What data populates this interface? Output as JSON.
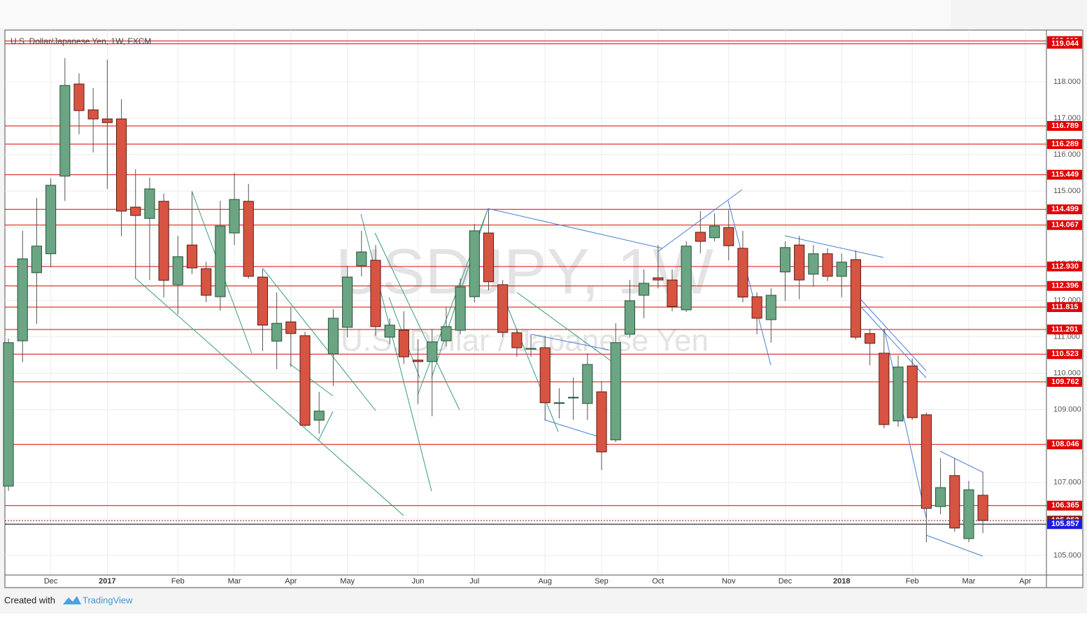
{
  "chart_data": {
    "type": "candlestick",
    "title": "U.S. Dollar/Japanese Yen, 1W, FXCM",
    "watermark": "USDJPY, 1W",
    "watermark_subtitle": "U.S. Dollar / Japanese Yen",
    "x": [
      0,
      1,
      2,
      3,
      4,
      5,
      6,
      7,
      8,
      9,
      10,
      11,
      12,
      13,
      14,
      15,
      16,
      17,
      18,
      19,
      20,
      21,
      22,
      23,
      24,
      25,
      26,
      27,
      28,
      29,
      30,
      31,
      32,
      33,
      34,
      35,
      36,
      37,
      38,
      39,
      40,
      41,
      42,
      43,
      44,
      45,
      46,
      47,
      48,
      49,
      50,
      51,
      52,
      53,
      54,
      55,
      56,
      57,
      58,
      59,
      60,
      61,
      62,
      63,
      64,
      65,
      66,
      67,
      68,
      69
    ],
    "open": [
      106.9,
      110.89,
      112.76,
      113.28,
      115.41,
      117.94,
      117.23,
      116.98,
      116.98,
      114.56,
      114.25,
      114.72,
      112.43,
      113.52,
      112.87,
      112.1,
      113.85,
      114.72,
      112.64,
      110.88,
      111.41,
      111.03,
      108.71,
      110.53,
      111.26,
      112.95,
      113.1,
      110.99,
      111.18,
      110.36,
      110.32,
      110.89,
      111.18,
      112.1,
      113.85,
      112.43,
      111.11,
      110.66,
      110.7,
      109.17,
      109.32,
      109.17,
      109.49,
      108.17,
      111.07,
      112.14,
      112.62,
      112.56,
      111.74,
      113.87,
      113.72,
      114.0,
      113.43,
      112.1,
      111.47,
      112.78,
      113.52,
      112.72,
      113.28,
      112.66,
      113.12,
      111.09,
      110.55,
      108.69,
      110.2,
      108.86,
      106.34,
      107.19,
      105.46,
      106.65
    ],
    "high": [
      110.95,
      113.91,
      114.81,
      115.35,
      118.65,
      118.23,
      117.83,
      118.61,
      117.52,
      115.6,
      115.37,
      114.93,
      113.77,
      115.0,
      113.06,
      114.73,
      115.5,
      115.2,
      112.85,
      112.22,
      111.8,
      111.14,
      109.49,
      111.76,
      112.95,
      113.91,
      113.52,
      111.51,
      111.7,
      110.93,
      111.22,
      111.8,
      112.6,
      114.1,
      114.48,
      112.56,
      111.22,
      111.07,
      111.03,
      109.59,
      109.88,
      110.55,
      109.78,
      111.37,
      112.56,
      112.85,
      113.52,
      112.85,
      113.62,
      114.45,
      114.39,
      114.48,
      113.91,
      112.22,
      112.33,
      113.62,
      113.77,
      113.52,
      113.43,
      113.28,
      113.37,
      111.22,
      111.22,
      110.49,
      110.41,
      108.92,
      107.67,
      107.67,
      107.04,
      107.29
    ],
    "low": [
      106.77,
      110.3,
      111.36,
      112.91,
      114.73,
      116.56,
      116.06,
      115.06,
      113.76,
      112.6,
      112.56,
      112.08,
      111.62,
      112.72,
      111.95,
      111.72,
      113.52,
      112.6,
      110.61,
      110.11,
      110.17,
      108.53,
      108.34,
      109.65,
      110.99,
      112.66,
      111.03,
      110.8,
      110.26,
      109.15,
      108.82,
      110.74,
      111.07,
      111.95,
      112.28,
      110.99,
      110.45,
      110.45,
      108.72,
      108.76,
      108.72,
      108.72,
      107.34,
      108.11,
      110.99,
      111.51,
      112.33,
      111.7,
      111.68,
      113.29,
      113.62,
      113.1,
      111.95,
      111.07,
      110.84,
      111.99,
      112.03,
      112.37,
      112.53,
      112.09,
      110.93,
      110.22,
      108.49,
      108.53,
      108.72,
      105.36,
      106.13,
      105.65,
      105.36,
      105.61
    ],
    "close": [
      110.84,
      113.14,
      113.49,
      115.16,
      117.9,
      117.21,
      116.98,
      116.88,
      114.45,
      114.33,
      115.06,
      112.55,
      113.2,
      112.89,
      112.14,
      114.04,
      114.77,
      112.66,
      111.32,
      111.37,
      111.09,
      108.57,
      108.96,
      111.51,
      112.64,
      113.33,
      111.28,
      111.32,
      110.45,
      110.32,
      110.86,
      111.28,
      112.37,
      113.91,
      112.51,
      111.12,
      110.7,
      110.68,
      109.19,
      109.19,
      109.34,
      110.24,
      107.84,
      110.84,
      111.99,
      112.47,
      112.56,
      111.83,
      113.49,
      113.62,
      114.04,
      113.5,
      112.09,
      111.51,
      112.14,
      113.45,
      112.56,
      113.28,
      112.66,
      113.05,
      110.99,
      110.82,
      108.59,
      110.17,
      108.78,
      106.29,
      106.86,
      105.75,
      106.8,
      105.96
    ],
    "up_color": "#6ba583",
    "down_color": "#d75442",
    "xlim": [
      -0.25,
      73.5
    ],
    "xticks": [
      {
        "value": 3,
        "label": "Dec"
      },
      {
        "value": 7,
        "label": "2017"
      },
      {
        "value": 12,
        "label": "Feb"
      },
      {
        "value": 16,
        "label": "Mar"
      },
      {
        "value": 20,
        "label": "Apr"
      },
      {
        "value": 24,
        "label": "May"
      },
      {
        "value": 29,
        "label": "Jun"
      },
      {
        "value": 33,
        "label": "Jul"
      },
      {
        "value": 38,
        "label": "Aug"
      },
      {
        "value": 42,
        "label": "Sep"
      },
      {
        "value": 46,
        "label": "Oct"
      },
      {
        "value": 51,
        "label": "Nov"
      },
      {
        "value": 55,
        "label": "Dec"
      },
      {
        "value": 59,
        "label": "2018"
      },
      {
        "value": 64,
        "label": "Feb"
      },
      {
        "value": 68,
        "label": "Mar"
      },
      {
        "value": 72,
        "label": "Apr"
      }
    ],
    "ylim": [
      104.46,
      119.42
    ],
    "yticks": [
      {
        "value": 105,
        "label": "105.000"
      },
      {
        "value": 106,
        "label": "106.000"
      },
      {
        "value": 107,
        "label": "107.000"
      },
      {
        "value": 108,
        "label": "108.000"
      },
      {
        "value": 109,
        "label": "109.000"
      },
      {
        "value": 110,
        "label": "110.000"
      },
      {
        "value": 111,
        "label": "111.000"
      },
      {
        "value": 112,
        "label": "112.000"
      },
      {
        "value": 113,
        "label": "113.000"
      },
      {
        "value": 114,
        "label": "114.000"
      },
      {
        "value": 115,
        "label": "115.000"
      },
      {
        "value": 116,
        "label": "116.000"
      },
      {
        "value": 117,
        "label": "117.000"
      },
      {
        "value": 118,
        "label": "118.000"
      }
    ],
    "grid": true,
    "levels": [
      {
        "value": 119.119,
        "label": "119.119",
        "color": "#e00000"
      },
      {
        "value": 119.044,
        "label": "119.044",
        "color": "#e00000"
      },
      {
        "value": 116.789,
        "label": "116.789",
        "color": "#e00000"
      },
      {
        "value": 116.289,
        "label": "116.289",
        "color": "#e00000"
      },
      {
        "value": 115.449,
        "label": "115.449",
        "color": "#e00000"
      },
      {
        "value": 114.499,
        "label": "114.499",
        "color": "#e00000"
      },
      {
        "value": 114.067,
        "label": "114.067",
        "color": "#e00000"
      },
      {
        "value": 112.93,
        "label": "112.930",
        "color": "#e00000"
      },
      {
        "value": 112.396,
        "label": "112.396",
        "color": "#e00000"
      },
      {
        "value": 111.815,
        "label": "111.815",
        "color": "#e00000"
      },
      {
        "value": 111.201,
        "label": "111.201",
        "color": "#e00000"
      },
      {
        "value": 110.523,
        "label": "110.523",
        "color": "#e00000"
      },
      {
        "value": 109.762,
        "label": "109.762",
        "color": "#e00000"
      },
      {
        "value": 108.046,
        "label": "108.046",
        "color": "#e00000"
      },
      {
        "value": 106.365,
        "label": "106.365",
        "color": "#e00000"
      },
      {
        "value": 105.953,
        "label": "105.953",
        "color": "#8b1a1a",
        "style": "dotted"
      },
      {
        "value": 105.857,
        "label": "105.857",
        "color": "#1c1ce0",
        "line_color": "#000000"
      }
    ]
  },
  "footer": {
    "text": "Created with",
    "brand": "TradingView"
  }
}
